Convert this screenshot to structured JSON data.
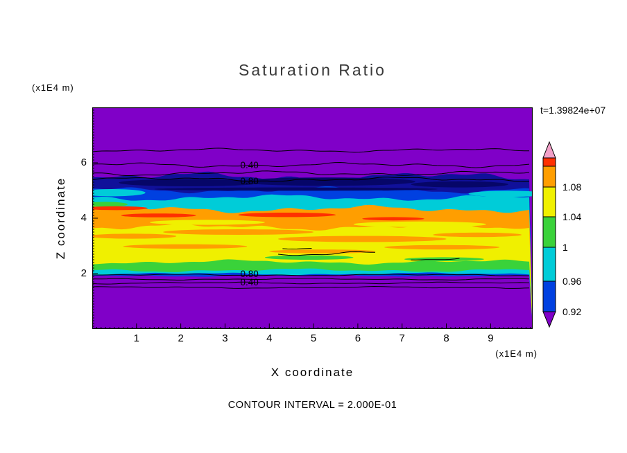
{
  "chart_data": {
    "type": "heatmap",
    "subtype": "filled-contour",
    "title": "Saturation Ratio",
    "annotation_time": "t=1.39824e+07",
    "xlabel": "X coordinate",
    "ylabel": "Z coordinate",
    "x_unit": "(x1E4 m)",
    "y_unit": "(x1E4 m)",
    "footnote": "CONTOUR INTERVAL = 2.000E-01",
    "xlim": [
      0,
      9.95
    ],
    "ylim": [
      0,
      8
    ],
    "x_ticks": [
      1,
      2,
      3,
      4,
      5,
      6,
      7,
      8,
      9
    ],
    "y_ticks": [
      2,
      4,
      6
    ],
    "minor_tick_step": 0.1,
    "grid": false,
    "background_value_color": "#8000c8",
    "layers": [
      {
        "boundary_y": 5.5,
        "color": "#10109a",
        "amp": 0.1,
        "phase": 0.7
      },
      {
        "boundary_y": 5.02,
        "color": "#0040e0",
        "amp": 0.07,
        "phase": 1.6
      },
      {
        "boundary_y": 4.74,
        "color": "#00ccd8",
        "amp": 0.07,
        "phase": 2.1
      },
      {
        "boundary_y": 4.33,
        "color": "#ff9e00",
        "amp": 0.08,
        "phase": 3.4
      },
      {
        "boundary_y": 3.68,
        "color": "#f0f000",
        "amp": 0.07,
        "phase": 4.9
      },
      {
        "boundary_y": 2.42,
        "color": "#3ad23a",
        "amp": 0.05,
        "phase": 0.3
      },
      {
        "boundary_y": 2.12,
        "color": "#00ccd8",
        "amp": 0.04,
        "phase": 1.9
      },
      {
        "boundary_y": 1.99,
        "color": "#0040e0",
        "amp": 0.03,
        "phase": 2.8
      },
      {
        "boundary_y": 1.92,
        "color": "#8000c8",
        "amp": 0.02,
        "phase": 3.9
      }
    ],
    "patches": [
      {
        "cx": 2.2,
        "cy": 5.28,
        "rx": 1.6,
        "ry": 0.13,
        "color": "#060668"
      },
      {
        "cx": 5.3,
        "cy": 5.32,
        "rx": 2.0,
        "ry": 0.15,
        "color": "#060668"
      },
      {
        "cx": 8.3,
        "cy": 5.22,
        "rx": 1.1,
        "ry": 0.11,
        "color": "#060668"
      },
      {
        "cx": 4.6,
        "cy": 5.05,
        "rx": 3.2,
        "ry": 0.06,
        "color": "#060668"
      },
      {
        "cx": 0.45,
        "cy": 4.92,
        "rx": 0.75,
        "ry": 0.13,
        "color": "#00ccd8"
      },
      {
        "cx": 9.4,
        "cy": 4.88,
        "rx": 0.9,
        "ry": 0.11,
        "color": "#00ccd8"
      },
      {
        "cx": 0.3,
        "cy": 4.5,
        "rx": 0.5,
        "ry": 0.09,
        "color": "#3ad23a"
      },
      {
        "cx": 0.55,
        "cy": 4.36,
        "rx": 0.7,
        "ry": 0.07,
        "color": "#ff3000"
      },
      {
        "cx": 1.5,
        "cy": 4.1,
        "rx": 0.85,
        "ry": 0.07,
        "color": "#ff3000"
      },
      {
        "cx": 4.4,
        "cy": 4.12,
        "rx": 1.1,
        "ry": 0.08,
        "color": "#ff3000"
      },
      {
        "cx": 6.8,
        "cy": 3.98,
        "rx": 0.7,
        "ry": 0.06,
        "color": "#ff3000"
      },
      {
        "cx": 2.6,
        "cy": 3.85,
        "rx": 1.3,
        "ry": 0.09,
        "color": "#f0f000"
      },
      {
        "cx": 7.4,
        "cy": 3.78,
        "rx": 1.5,
        "ry": 0.1,
        "color": "#f0f000"
      },
      {
        "cx": 0.9,
        "cy": 3.35,
        "rx": 1.0,
        "ry": 0.09,
        "color": "#ff9e00"
      },
      {
        "cx": 3.3,
        "cy": 3.5,
        "rx": 1.7,
        "ry": 0.1,
        "color": "#ff9e00"
      },
      {
        "cx": 6.1,
        "cy": 3.25,
        "rx": 1.9,
        "ry": 0.11,
        "color": "#ff9e00"
      },
      {
        "cx": 8.7,
        "cy": 3.4,
        "rx": 1.0,
        "ry": 0.08,
        "color": "#ff9e00"
      },
      {
        "cx": 2.1,
        "cy": 2.98,
        "rx": 1.4,
        "ry": 0.08,
        "color": "#ff9e00"
      },
      {
        "cx": 5.2,
        "cy": 2.8,
        "rx": 1.2,
        "ry": 0.07,
        "color": "#ff9e00"
      },
      {
        "cx": 7.9,
        "cy": 2.95,
        "rx": 1.3,
        "ry": 0.08,
        "color": "#ff9e00"
      },
      {
        "cx": 4.9,
        "cy": 2.58,
        "rx": 1.0,
        "ry": 0.08,
        "color": "#3ad23a"
      },
      {
        "cx": 7.95,
        "cy": 2.52,
        "rx": 0.9,
        "ry": 0.07,
        "color": "#3ad23a"
      }
    ],
    "contour_lines": [
      {
        "y": 6.45,
        "amp": 0.04,
        "phase": 0.5
      },
      {
        "y": 5.92,
        "amp": 0.05,
        "phase": 1.4
      },
      {
        "y": 5.62,
        "amp": 0.05,
        "phase": 2.2
      },
      {
        "y": 5.4,
        "amp": 0.05,
        "phase": 3.1
      },
      {
        "y": 1.95,
        "amp": 0.02,
        "phase": 0.9
      },
      {
        "y": 1.8,
        "amp": 0.02,
        "phase": 1.8
      },
      {
        "y": 1.66,
        "amp": 0.02,
        "phase": 2.6
      },
      {
        "y": 1.5,
        "amp": 0.02,
        "phase": 3.3
      },
      {
        "y": 2.72,
        "amp": 0.05,
        "phase": 1.1,
        "x0": 4.2,
        "x1": 6.4
      },
      {
        "y": 2.55,
        "amp": 0.04,
        "phase": 2.0,
        "x0": 7.2,
        "x1": 8.35
      },
      {
        "y": 2.9,
        "amp": 0.03,
        "phase": 0.2,
        "x0": 4.3,
        "x1": 5.0
      }
    ],
    "contour_labels": [
      {
        "text": "0.40",
        "x": 3.55,
        "y": 5.9
      },
      {
        "text": "0.80",
        "x": 3.55,
        "y": 5.32
      },
      {
        "text": "0.80",
        "x": 3.55,
        "y": 1.97
      },
      {
        "text": "0.40",
        "x": 3.55,
        "y": 1.68
      }
    ],
    "colorbar": {
      "tick_labels": [
        "1.08",
        "1.04",
        "1",
        "0.96",
        "0.92"
      ],
      "segments_bottom_to_top": [
        {
          "color": "#8000c8",
          "shape": "arrow-down"
        },
        {
          "color": "#0040e0"
        },
        {
          "color": "#00ccd8"
        },
        {
          "color": "#3ad23a"
        },
        {
          "color": "#f0f000"
        },
        {
          "color": "#ff9e00"
        },
        {
          "color": "#ff3000"
        },
        {
          "color": "#f2a0c8",
          "shape": "arrow-up"
        }
      ]
    }
  }
}
